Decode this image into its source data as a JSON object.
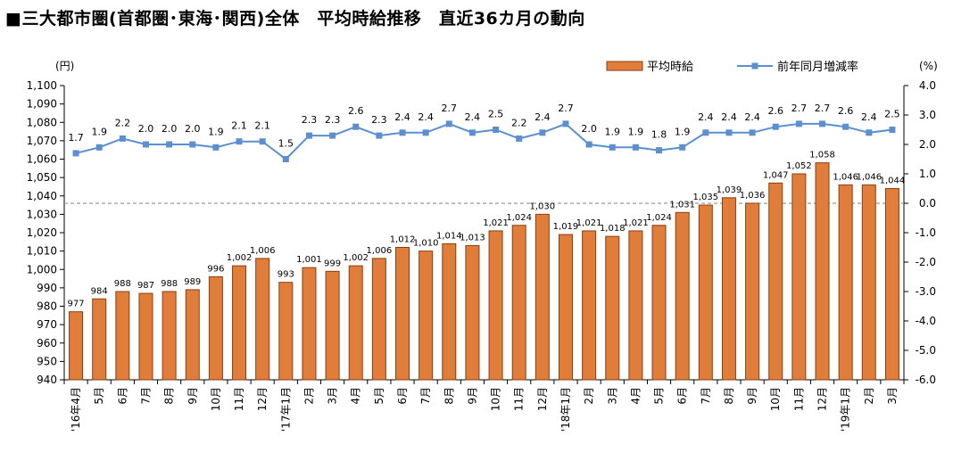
{
  "chart_data": {
    "type": "bar",
    "title": "■三大都市圏(首都圏･東海･関西)全体　平均時給推移　直近36カ月の動向",
    "categories": [
      "'16年4月",
      "5月",
      "6月",
      "7月",
      "8月",
      "9月",
      "10月",
      "11月",
      "12月",
      "'17年1月",
      "2月",
      "3月",
      "4月",
      "5月",
      "6月",
      "7月",
      "8月",
      "9月",
      "10月",
      "11月",
      "12月",
      "'18年1月",
      "2月",
      "3月",
      "4月",
      "5月",
      "6月",
      "7月",
      "8月",
      "9月",
      "10月",
      "11月",
      "12月",
      "'19年1月",
      "2月",
      "3月"
    ],
    "series": [
      {
        "name": "平均時給",
        "type": "bar",
        "axis": "left",
        "color": "#E07D3A",
        "values": [
          977,
          984,
          988,
          987,
          988,
          989,
          996,
          1002,
          1006,
          993,
          1001,
          999,
          1002,
          1006,
          1012,
          1010,
          1014,
          1013,
          1021,
          1024,
          1030,
          1019,
          1021,
          1018,
          1021,
          1024,
          1031,
          1035,
          1039,
          1036,
          1047,
          1052,
          1058,
          1046,
          1046,
          1044
        ],
        "labels": [
          "977",
          "984",
          "988",
          "987",
          "988",
          "989",
          "996",
          "1,002",
          "1,006",
          "993",
          "1,001",
          "999",
          "1,002",
          "1,006",
          "1,012",
          "1,010",
          "1,014",
          "1,013",
          "1,021",
          "1,024",
          "1,030",
          "1,019",
          "1,021",
          "1,018",
          "1,021",
          "1,024",
          "1,031",
          "1,035",
          "1,039",
          "1,036",
          "1,047",
          "1,052",
          "1,058",
          "1,046",
          "1,046",
          "1,044"
        ]
      },
      {
        "name": "前年同月増減率",
        "type": "line",
        "axis": "right",
        "color": "#5B8FD0",
        "values": [
          1.7,
          1.9,
          2.2,
          2.0,
          2.0,
          2.0,
          1.9,
          2.1,
          2.1,
          1.5,
          2.3,
          2.3,
          2.6,
          2.3,
          2.4,
          2.4,
          2.7,
          2.4,
          2.5,
          2.2,
          2.4,
          2.7,
          2.0,
          1.9,
          1.9,
          1.8,
          1.9,
          2.4,
          2.4,
          2.4,
          2.6,
          2.7,
          2.7,
          2.6,
          2.4,
          2.5
        ],
        "labels": [
          "1.7",
          "1.9",
          "2.2",
          "2.0",
          "2.0",
          "2.0",
          "1.9",
          "2.1",
          "2.1",
          "1.5",
          "2.3",
          "2.3",
          "2.6",
          "2.3",
          "2.4",
          "2.4",
          "2.7",
          "2.4",
          "2.5",
          "2.2",
          "2.4",
          "2.7",
          "2.0",
          "1.9",
          "1.9",
          "1.8",
          "1.9",
          "2.4",
          "2.4",
          "2.4",
          "2.6",
          "2.7",
          "2.7",
          "2.6",
          "2.4",
          "2.5"
        ]
      }
    ],
    "y_left": {
      "unit": "(円)",
      "ylim": [
        940,
        1100
      ],
      "ticks": [
        940,
        950,
        960,
        970,
        980,
        990,
        1000,
        1010,
        1020,
        1030,
        1040,
        1050,
        1060,
        1070,
        1080,
        1090,
        1100
      ],
      "tick_labels": [
        "940",
        "950",
        "960",
        "970",
        "980",
        "990",
        "1,000",
        "1,010",
        "1,020",
        "1,030",
        "1,040",
        "1,050",
        "1,060",
        "1,070",
        "1,080",
        "1,090",
        "1,100"
      ]
    },
    "y_right": {
      "unit": "(%)",
      "ylim": [
        -6.0,
        4.0
      ],
      "ticks": [
        -6,
        -5,
        -4,
        -3,
        -2,
        -1,
        0,
        1,
        2,
        3,
        4
      ],
      "tick_labels": [
        "-6.0",
        "-5.0",
        "-4.0",
        "-3.0",
        "-2.0",
        "-1.0",
        "0.0",
        "1.0",
        "2.0",
        "3.0",
        "4.0"
      ],
      "reference_line": 0.0
    },
    "legend": {
      "position": "top-right",
      "items": [
        "平均時給",
        "前年同月増減率"
      ]
    },
    "grid": false
  }
}
